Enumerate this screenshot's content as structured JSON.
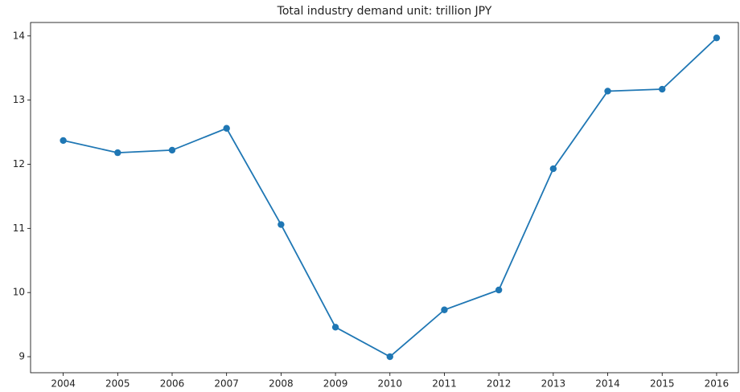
{
  "chart_data": {
    "type": "line",
    "title": "Total industry demand unit: trillion JPY",
    "x": [
      2004,
      2005,
      2006,
      2007,
      2008,
      2009,
      2010,
      2011,
      2012,
      2013,
      2014,
      2015,
      2016
    ],
    "series": [
      {
        "color": "#1f77b4",
        "values": [
          12.37,
          12.18,
          12.22,
          12.56,
          11.06,
          9.46,
          9.0,
          9.73,
          10.04,
          11.93,
          13.14,
          13.17,
          13.97
        ]
      }
    ],
    "xlim": [
      2003.4,
      2016.4
    ],
    "xticks": [
      2004,
      2005,
      2006,
      2007,
      2008,
      2009,
      2010,
      2011,
      2012,
      2013,
      2014,
      2015,
      2016
    ],
    "ylim": [
      8.75,
      14.21
    ],
    "yticks": [
      9,
      10,
      11,
      12,
      13,
      14
    ],
    "grid": false
  }
}
